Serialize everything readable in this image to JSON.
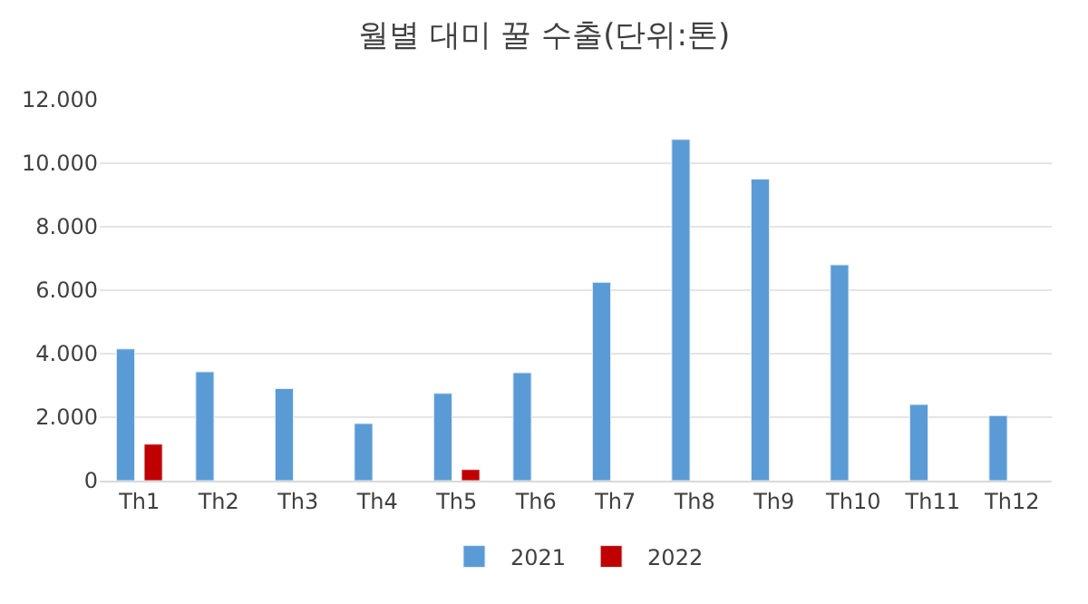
{
  "chart_data": {
    "type": "bar",
    "title": "월별 대미 꿀 수출(단위:톤)",
    "categories": [
      "Th1",
      "Th2",
      "Th3",
      "Th4",
      "Th5",
      "Th6",
      "Th7",
      "Th8",
      "Th9",
      "Th10",
      "Th11",
      "Th12"
    ],
    "series": [
      {
        "name": "2021",
        "color": "#5b9bd5",
        "values": [
          4150,
          3430,
          2900,
          1800,
          2750,
          3400,
          6250,
          10750,
          9500,
          6800,
          2400,
          2050
        ]
      },
      {
        "name": "2022",
        "color": "#c00000",
        "values": [
          1150,
          null,
          null,
          null,
          350,
          null,
          null,
          null,
          null,
          null,
          null,
          null
        ]
      }
    ],
    "ylim": [
      0,
      12000
    ],
    "yticks": [
      {
        "value": 0,
        "label": "0"
      },
      {
        "value": 2000,
        "label": "2.000"
      },
      {
        "value": 4000,
        "label": "4.000"
      },
      {
        "value": 6000,
        "label": "6.000"
      },
      {
        "value": 8000,
        "label": "8.000"
      },
      {
        "value": 10000,
        "label": "10.000"
      },
      {
        "value": 12000,
        "label": "12.000"
      }
    ],
    "grid": "y",
    "legend": "bottom"
  }
}
